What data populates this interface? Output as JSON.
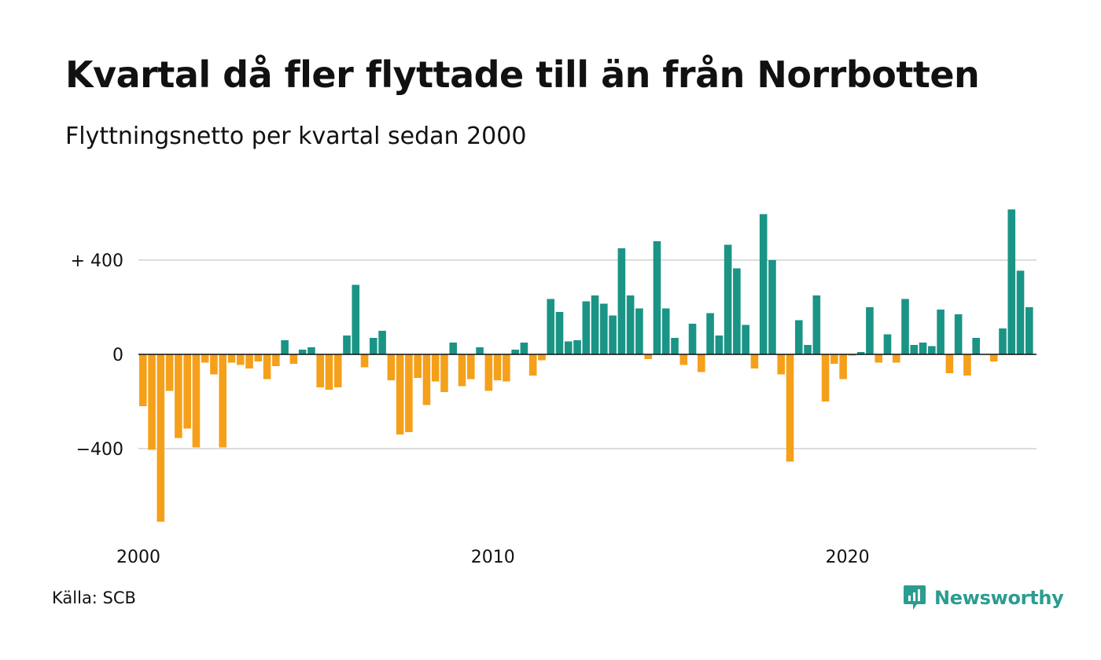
{
  "title": "Kvartal då fler flyttade till än från Norrbotten",
  "subtitle": "Flyttningsnetto per kvartal sedan 2000",
  "source": "Källa: SCB",
  "brand": {
    "name": "Newsworthy",
    "icon": "newsworthy-logo-icon"
  },
  "colors": {
    "positive": "#1a9485",
    "negative": "#f5a01a",
    "grid": "#dddddd",
    "axis": "#111111"
  },
  "chart_data": {
    "type": "bar",
    "title": "Kvartal då fler flyttade till än från Norrbotten",
    "subtitle": "Flyttningsnetto per kvartal sedan 2000",
    "xlabel": "",
    "ylabel": "",
    "ylim": [
      -780,
      620
    ],
    "yticks": [
      {
        "value": 400,
        "label": "+ 400"
      },
      {
        "value": 0,
        "label": "0"
      },
      {
        "value": -400,
        "label": "−400"
      }
    ],
    "xticks": [
      {
        "label": "2000",
        "year": 2000
      },
      {
        "label": "2010",
        "year": 2010
      },
      {
        "label": "2020",
        "year": 2020
      }
    ],
    "grid": true,
    "first_quarter": "2000 Q1",
    "categories": [
      "2000 Q1",
      "2000 Q2",
      "2000 Q3",
      "2000 Q4",
      "2001 Q1",
      "2001 Q2",
      "2001 Q3",
      "2001 Q4",
      "2002 Q1",
      "2002 Q2",
      "2002 Q3",
      "2002 Q4",
      "2003 Q1",
      "2003 Q2",
      "2003 Q3",
      "2003 Q4",
      "2004 Q1",
      "2004 Q2",
      "2004 Q3",
      "2004 Q4",
      "2005 Q1",
      "2005 Q2",
      "2005 Q3",
      "2005 Q4",
      "2006 Q1",
      "2006 Q2",
      "2006 Q3",
      "2006 Q4",
      "2007 Q1",
      "2007 Q2",
      "2007 Q3",
      "2007 Q4",
      "2008 Q1",
      "2008 Q2",
      "2008 Q3",
      "2008 Q4",
      "2009 Q1",
      "2009 Q2",
      "2009 Q3",
      "2009 Q4",
      "2010 Q1",
      "2010 Q2",
      "2010 Q3",
      "2010 Q4",
      "2011 Q1",
      "2011 Q2",
      "2011 Q3",
      "2011 Q4",
      "2012 Q1",
      "2012 Q2",
      "2012 Q3",
      "2012 Q4",
      "2013 Q1",
      "2013 Q2",
      "2013 Q3",
      "2013 Q4",
      "2014 Q1",
      "2014 Q2",
      "2014 Q3",
      "2014 Q4",
      "2015 Q1",
      "2015 Q2",
      "2015 Q3",
      "2015 Q4",
      "2016 Q1",
      "2016 Q2",
      "2016 Q3",
      "2016 Q4",
      "2017 Q1",
      "2017 Q2",
      "2017 Q3",
      "2017 Q4",
      "2018 Q1",
      "2018 Q2",
      "2018 Q3",
      "2018 Q4",
      "2019 Q1",
      "2019 Q2",
      "2019 Q3",
      "2019 Q4",
      "2020 Q1",
      "2020 Q2",
      "2020 Q3",
      "2020 Q4",
      "2021 Q1",
      "2021 Q2",
      "2021 Q3",
      "2021 Q4",
      "2022 Q1",
      "2022 Q2",
      "2022 Q3",
      "2022 Q4",
      "2023 Q1",
      "2023 Q2",
      "2023 Q3",
      "2023 Q4",
      "2024 Q1",
      "2024 Q2",
      "2024 Q3",
      "2024 Q4",
      "2025 Q1"
    ],
    "values": [
      -220,
      -405,
      -710,
      -155,
      -355,
      -315,
      -395,
      -35,
      -85,
      -395,
      -35,
      -45,
      -60,
      -30,
      -105,
      -50,
      60,
      -40,
      20,
      30,
      -140,
      -150,
      -140,
      80,
      295,
      -55,
      70,
      100,
      -110,
      -340,
      -330,
      -100,
      -215,
      -115,
      -160,
      50,
      -135,
      -105,
      30,
      -155,
      -110,
      -115,
      20,
      50,
      -90,
      -25,
      235,
      180,
      55,
      60,
      225,
      250,
      215,
      165,
      450,
      250,
      195,
      -20,
      480,
      195,
      70,
      -45,
      130,
      -75,
      175,
      80,
      465,
      365,
      125,
      -60,
      595,
      400,
      -85,
      -455,
      145,
      40,
      250,
      -200,
      -40,
      -105,
      -5,
      10,
      200,
      -35,
      85,
      -35,
      235,
      40,
      50,
      35,
      190,
      -80,
      170,
      -90,
      70,
      0,
      -30,
      110,
      615,
      355,
      200
    ]
  }
}
